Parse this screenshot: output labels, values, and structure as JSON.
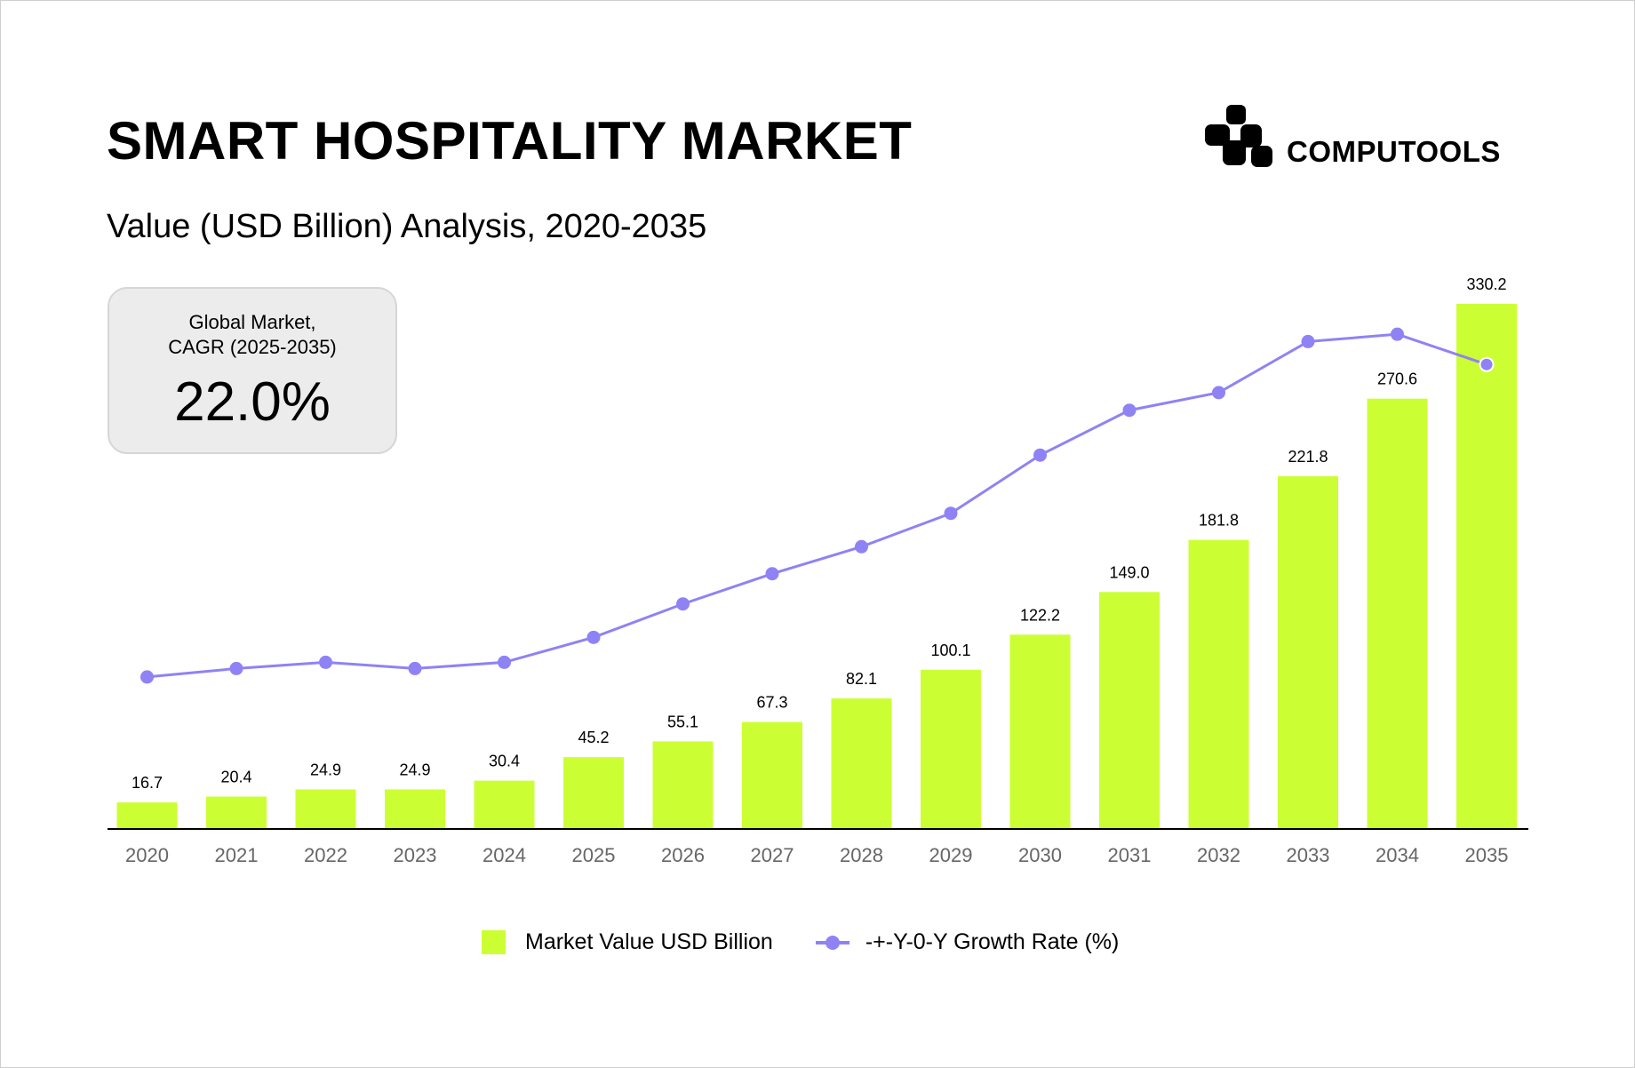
{
  "header": {
    "title": "SMART HOSPITALITY MARKET",
    "subtitle": "Value (USD Billion) Analysis, 2020-2035"
  },
  "logo": {
    "text": "COMPUTOOLS",
    "icon": "computools-logo-icon"
  },
  "cagr_box": {
    "label_line1": "Global Market,",
    "label_line2": "CAGR (2025-2035)",
    "value": "22.0%"
  },
  "colors": {
    "bar": "#ccff33",
    "line": "#8f82f5",
    "axis": "#000000"
  },
  "chart_data": {
    "type": "bar",
    "title": "SMART HOSPITALITY MARKET",
    "subtitle": "Value (USD Billion) Analysis, 2020-2035",
    "categories": [
      "2020",
      "2021",
      "2022",
      "2023",
      "2024",
      "2025",
      "2026",
      "2027",
      "2028",
      "2029",
      "2030",
      "2031",
      "2032",
      "2033",
      "2034",
      "2035"
    ],
    "series": [
      {
        "name": "Market Value USD Billion",
        "type": "bar",
        "values": [
          16.7,
          20.4,
          24.9,
          24.9,
          30.4,
          45.2,
          55.1,
          67.3,
          82.1,
          100.1,
          122.2,
          149.0,
          181.8,
          221.8,
          270.6,
          330.2
        ],
        "labels": [
          "16.7",
          "20.4",
          "24.9",
          "24.9",
          "30.4",
          "45.2",
          "55.1",
          "67.3",
          "82.1",
          "100.1",
          "122.2",
          "149.0",
          "181.8",
          "221.8",
          "270.6",
          "330.2"
        ]
      },
      {
        "name": "-+-Y-0-Y Growth Rate (%)",
        "type": "line",
        "values": [
          95.6,
          100.9,
          104.8,
          100.9,
          104.8,
          120.5,
          141.5,
          160.5,
          177.5,
          198.5,
          235.1,
          263.3,
          274.4,
          306.5,
          311.1,
          292.1
        ]
      }
    ],
    "ylim": [
      0,
      330.2
    ],
    "grid": false,
    "legend": "bottom-center"
  },
  "legend": {
    "bar_label": "Market Value USD Billion",
    "line_label": "-+-Y-0-Y Growth Rate (%)"
  }
}
